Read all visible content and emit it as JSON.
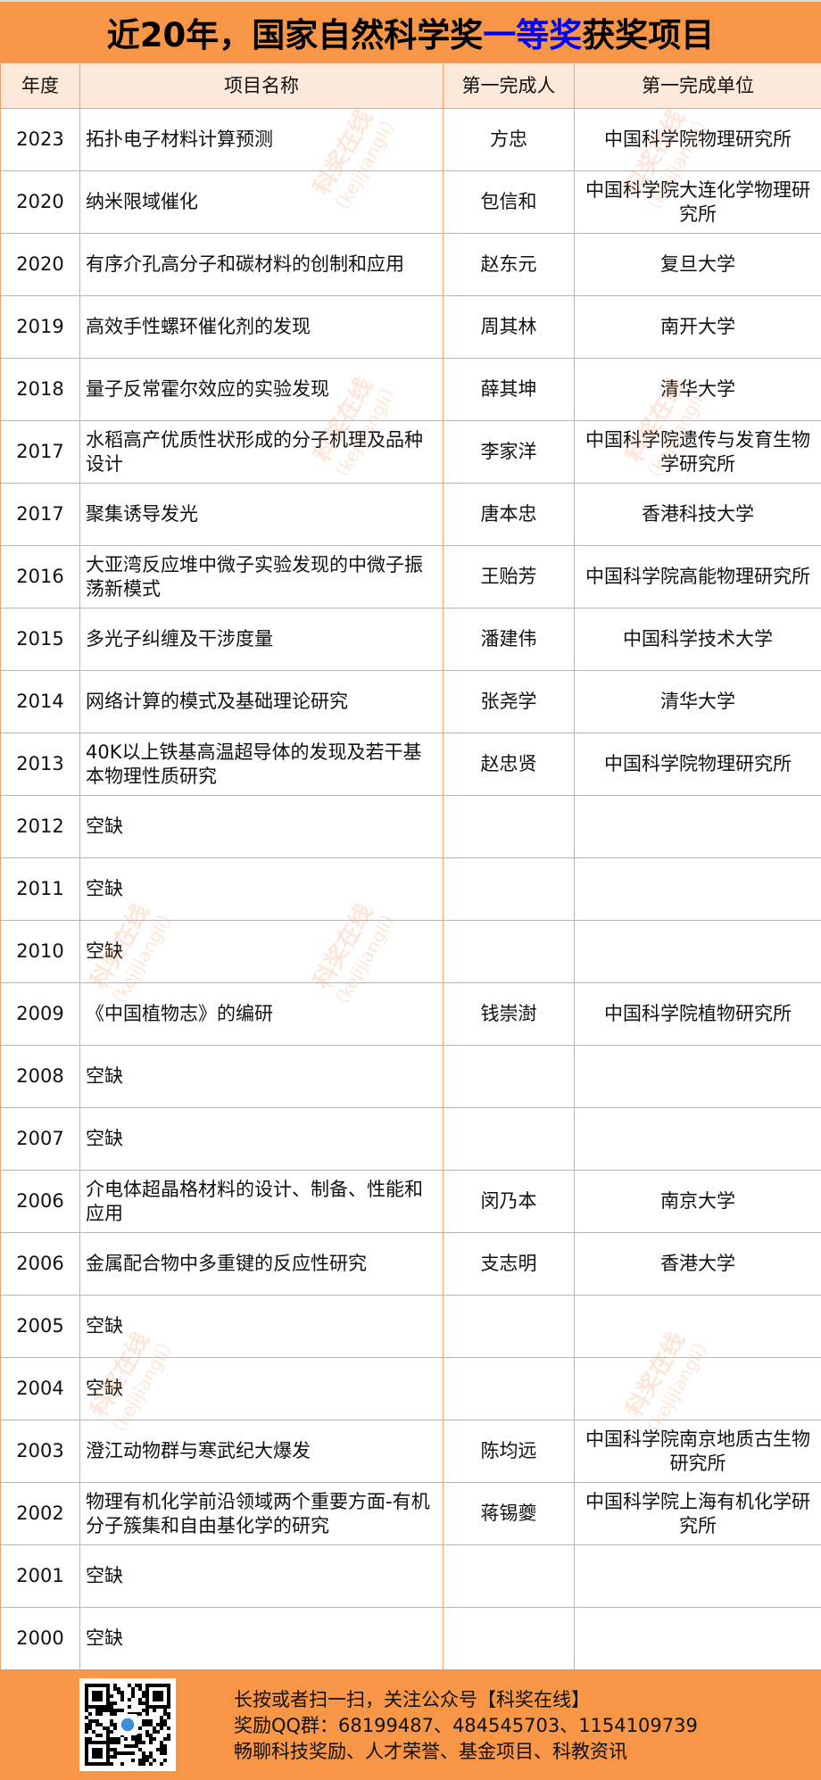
{
  "title": {
    "prefix": "近20年，国家自然科学奖",
    "highlight": "一等奖",
    "suffix": "获奖项目",
    "highlight_color": "#0000FF",
    "band_color": "#F79646"
  },
  "headers": [
    "年度",
    "项目名称",
    "第一完成人",
    "第一完成单位"
  ],
  "rows": [
    {
      "year": "2023",
      "project": "拓扑电子材料计算预测",
      "person": "方忠",
      "unit": "中国科学院物理研究所"
    },
    {
      "year": "2020",
      "project": "纳米限域催化",
      "person": "包信和",
      "unit": "中国科学院大连化学物理研究所"
    },
    {
      "year": "2020",
      "project": "有序介孔高分子和碳材料的创制和应用",
      "person": "赵东元",
      "unit": "复旦大学"
    },
    {
      "year": "2019",
      "project": "高效手性螺环催化剂的发现",
      "person": "周其林",
      "unit": "南开大学"
    },
    {
      "year": "2018",
      "project": "量子反常霍尔效应的实验发现",
      "person": "薛其坤",
      "unit": "清华大学"
    },
    {
      "year": "2017",
      "project": "水稻高产优质性状形成的分子机理及品种设计",
      "person": "李家洋",
      "unit": "中国科学院遗传与发育生物学研究所"
    },
    {
      "year": "2017",
      "project": "聚集诱导发光",
      "person": "唐本忠",
      "unit": "香港科技大学"
    },
    {
      "year": "2016",
      "project": "大亚湾反应堆中微子实验发现的中微子振荡新模式",
      "person": "王贻芳",
      "unit": "中国科学院高能物理研究所"
    },
    {
      "year": "2015",
      "project": "多光子纠缠及干涉度量",
      "person": "潘建伟",
      "unit": "中国科学技术大学"
    },
    {
      "year": "2014",
      "project": "网络计算的模式及基础理论研究",
      "person": "张尧学",
      "unit": "清华大学"
    },
    {
      "year": "2013",
      "project": "40K以上铁基高温超导体的发现及若干基本物理性质研究",
      "person": "赵忠贤",
      "unit": "中国科学院物理研究所"
    },
    {
      "year": "2012",
      "project": "空缺",
      "person": "",
      "unit": ""
    },
    {
      "year": "2011",
      "project": "空缺",
      "person": "",
      "unit": ""
    },
    {
      "year": "2010",
      "project": "空缺",
      "person": "",
      "unit": ""
    },
    {
      "year": "2009",
      "project": "《中国植物志》的编研",
      "person": "钱崇澍",
      "unit": "中国科学院植物研究所"
    },
    {
      "year": "2008",
      "project": "空缺",
      "person": "",
      "unit": ""
    },
    {
      "year": "2007",
      "project": "空缺",
      "person": "",
      "unit": ""
    },
    {
      "year": "2006",
      "project": "介电体超晶格材料的设计、制备、性能和应用",
      "person": "闵乃本",
      "unit": "南京大学"
    },
    {
      "year": "2006",
      "project": "金属配合物中多重键的反应性研究",
      "person": "支志明",
      "unit": "香港大学"
    },
    {
      "year": "2005",
      "project": "空缺",
      "person": "",
      "unit": ""
    },
    {
      "year": "2004",
      "project": "空缺",
      "person": "",
      "unit": ""
    },
    {
      "year": "2003",
      "project": "澄江动物群与寒武纪大爆发",
      "person": "陈均远",
      "unit": "中国科学院南京地质古生物研究所"
    },
    {
      "year": "2002",
      "project": "物理有机化学前沿领域两个重要方面-有机分子簇集和自由基化学的研究",
      "person": "蒋锡夔",
      "unit": "中国科学院上海有机化学研究所"
    },
    {
      "year": "2001",
      "project": "空缺",
      "person": "",
      "unit": ""
    },
    {
      "year": "2000",
      "project": "空缺",
      "person": "",
      "unit": ""
    }
  ],
  "watermark": {
    "text": "科奖在线",
    "sub": "（kejijiangli）"
  },
  "footer": {
    "line1": "长按或者扫一扫，关注公众号【科奖在线】",
    "line2": "奖励QQ群：68199487、484545703、1154109739",
    "line3": "畅聊科技奖励、人才荣誉、基金项目、科教资讯",
    "qr_icon": "qr-code"
  }
}
